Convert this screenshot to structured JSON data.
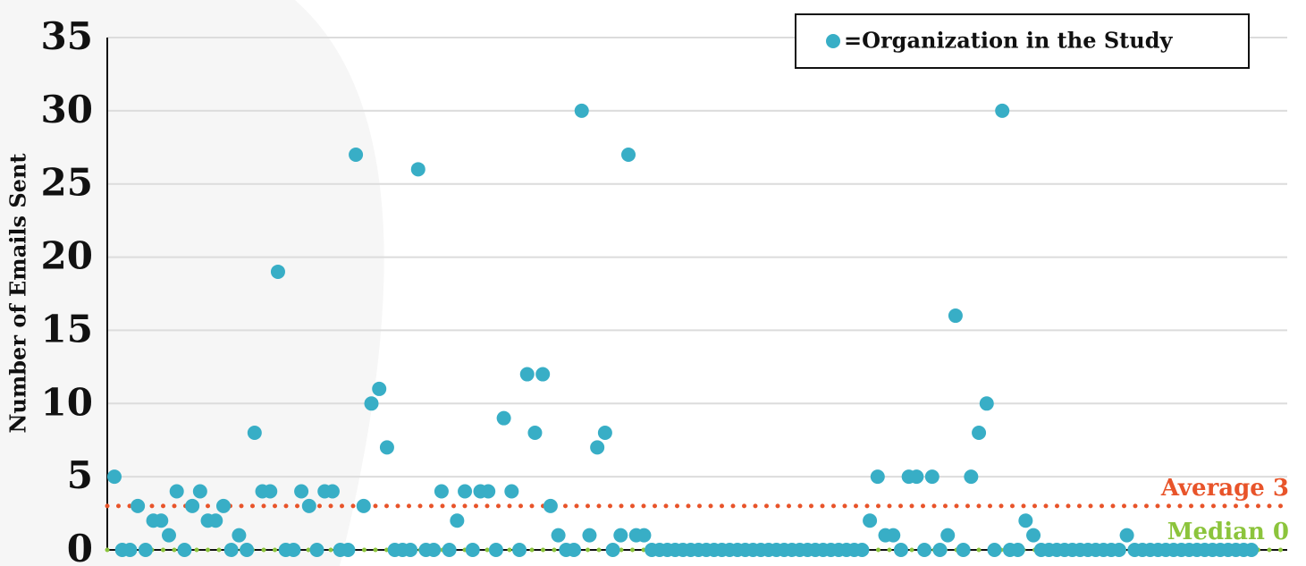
{
  "chart_data": {
    "type": "scatter",
    "y_label": "Number of Emails Sent",
    "ylim": [
      0,
      35
    ],
    "yticks": [
      0,
      5,
      10,
      15,
      20,
      25,
      30,
      35
    ],
    "grid": true,
    "legend_position": "upper right",
    "series": [
      {
        "name": "=Organization in the Study",
        "color": "#38aec6",
        "values": [
          5,
          0,
          0,
          3,
          0,
          2,
          2,
          1,
          4,
          0,
          3,
          4,
          2,
          2,
          3,
          0,
          1,
          0,
          8,
          4,
          4,
          19,
          0,
          0,
          4,
          3,
          0,
          4,
          4,
          0,
          0,
          27,
          3,
          10,
          11,
          7,
          0,
          0,
          0,
          26,
          0,
          0,
          4,
          0,
          2,
          4,
          0,
          4,
          4,
          0,
          9,
          4,
          0,
          12,
          8,
          12,
          3,
          1,
          0,
          0,
          30,
          1,
          7,
          8,
          0,
          1,
          27,
          1,
          1,
          0,
          0,
          0,
          0,
          0,
          0,
          0,
          0,
          0,
          0,
          0,
          0,
          0,
          0,
          0,
          0,
          0,
          0,
          0,
          0,
          0,
          0,
          0,
          0,
          0,
          0,
          0,
          0,
          2,
          5,
          1,
          1,
          0,
          5,
          5,
          0,
          5,
          0,
          1,
          16,
          0,
          5,
          8,
          10,
          0,
          30,
          0,
          0,
          2,
          1,
          0,
          0,
          0,
          0,
          0,
          0,
          0,
          0,
          0,
          0,
          0,
          1,
          0,
          0,
          0,
          0,
          0,
          0,
          0,
          0,
          0,
          0,
          0,
          0,
          0,
          0,
          0,
          0
        ]
      }
    ],
    "reference_lines": [
      {
        "label": "Average 3",
        "value": 3,
        "color": "#e8542a"
      },
      {
        "label": "Median 0",
        "value": 0,
        "color": "#8cc43c"
      }
    ]
  }
}
